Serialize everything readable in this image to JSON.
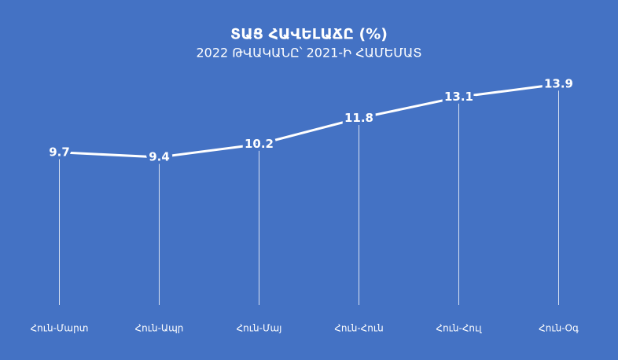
{
  "chart_data": {
    "type": "line",
    "title": "ՏԱՑ ՀԱՎԵԼԱՃԸ (%)",
    "subtitle": "2022 ԹՎԱԿԱՆԸ՝ 2021-Ի ՀԱՄԵՄԱՏ",
    "categories": [
      "Հուն-Մարտ",
      "Հուն-Ապր",
      "Հուն-Մայ",
      "Հուն-Հուն",
      "Հուն-Հուլ",
      "Հուն-Օգ"
    ],
    "values": [
      9.7,
      9.4,
      10.2,
      11.8,
      13.1,
      13.9
    ],
    "color": "#ffffff",
    "background": "#4472c4",
    "drop_lines": true
  }
}
